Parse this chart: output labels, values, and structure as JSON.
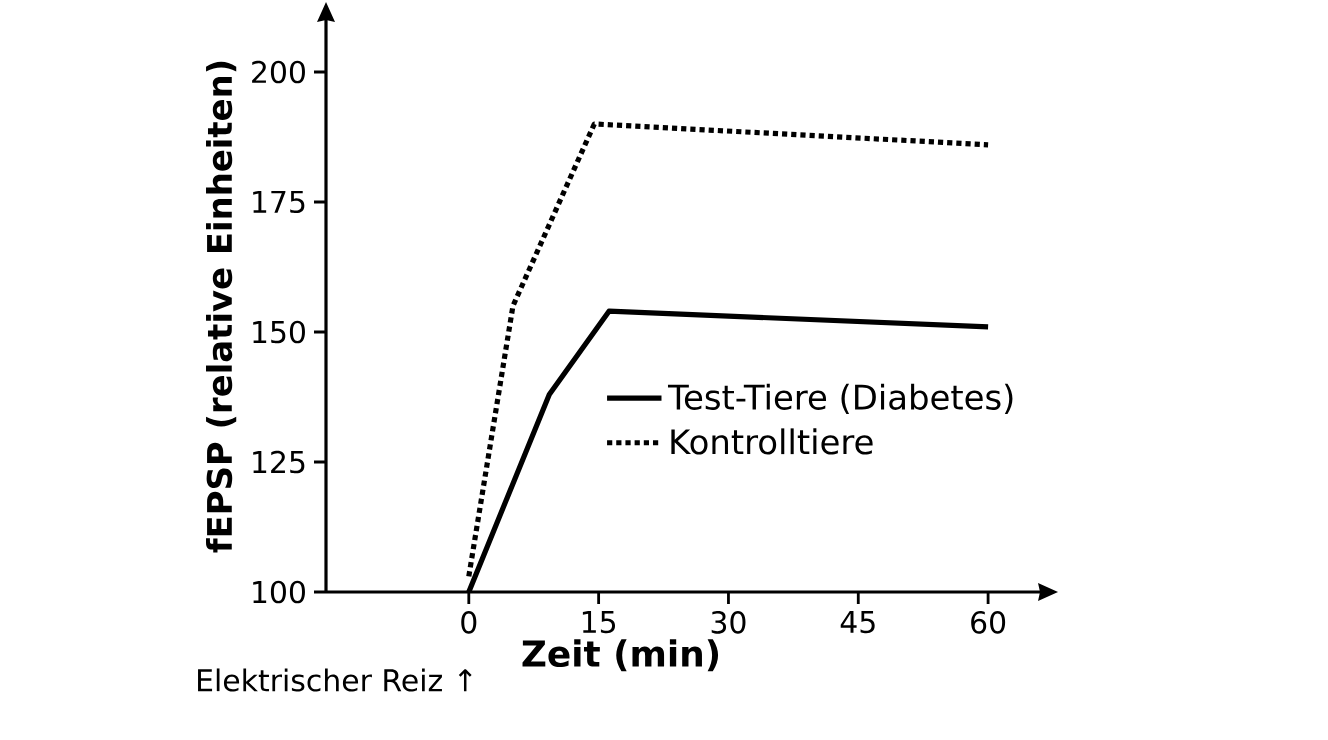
{
  "chart_data": {
    "type": "line",
    "xlabel": "Zeit (min)",
    "ylabel": "fEPSP (relative Einheiten)",
    "series": [
      {
        "name": "Test-Tiere (Diabetes)",
        "color": "#000000",
        "line_style": "solid",
        "x": [
          0,
          9.3,
          16.2,
          60
        ],
        "values": [
          100,
          138,
          154,
          151
        ]
      },
      {
        "name": "Kontrolltiere",
        "color": "#000000",
        "line_style": "dotted",
        "x": [
          0,
          5.1,
          14.5,
          60
        ],
        "values": [
          103,
          155,
          190,
          186
        ]
      }
    ],
    "xlim": [
      -16.5,
      66
    ],
    "ylim": [
      100,
      210
    ],
    "xticks": [
      0,
      15,
      30,
      45,
      60
    ],
    "yticks": [
      100,
      125,
      150,
      175,
      200
    ],
    "grid": false,
    "legend": "right",
    "marker": "none",
    "annotations": [
      "Elektrischer Reiz ↑"
    ]
  }
}
